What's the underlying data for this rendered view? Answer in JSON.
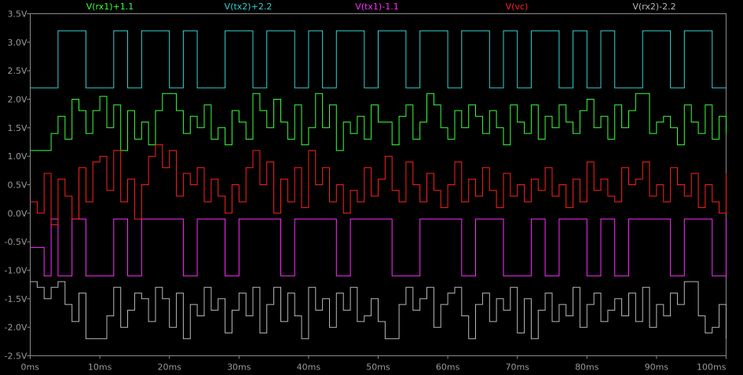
{
  "chart_data": {
    "type": "line",
    "xlabel": "",
    "ylabel": "",
    "xlim": [
      0,
      100
    ],
    "ylim": [
      -2.5,
      3.5
    ],
    "x_ticks": [
      "0ms",
      "10ms",
      "20ms",
      "30ms",
      "40ms",
      "50ms",
      "60ms",
      "70ms",
      "80ms",
      "90ms",
      "100ms"
    ],
    "y_ticks": [
      "3.5V",
      "3.0V",
      "2.5V",
      "2.0V",
      "1.5V",
      "1.0V",
      "0.5V",
      "0.0V",
      "-0.5V",
      "-1.0V",
      "-1.5V",
      "-2.0V",
      "-2.5V"
    ],
    "grid": false,
    "legend": "top",
    "series": [
      {
        "name": "V(rx1)+1.1",
        "color": "#3cff3c",
        "x": [
          0,
          2,
          3,
          4,
          5,
          6,
          7,
          8,
          9,
          10,
          11,
          12,
          13,
          14,
          15,
          16,
          17,
          18,
          19,
          20,
          21,
          22,
          23,
          24,
          25,
          26,
          27,
          28,
          29,
          30,
          31,
          32,
          33,
          34,
          35,
          36,
          37,
          38,
          39,
          40,
          41,
          42,
          43,
          44,
          45,
          46,
          47,
          48,
          49,
          50,
          51,
          52,
          53,
          54,
          55,
          56,
          57,
          58,
          59,
          60,
          61,
          62,
          63,
          64,
          65,
          66,
          67,
          68,
          69,
          70,
          71,
          72,
          73,
          74,
          75,
          76,
          77,
          78,
          79,
          80,
          81,
          82,
          83,
          84,
          85,
          86,
          87,
          88,
          89,
          90,
          91,
          92,
          93,
          94,
          95,
          96,
          97,
          98,
          99,
          100
        ],
        "values": [
          1.1,
          1.1,
          1.4,
          1.7,
          1.3,
          2.0,
          1.8,
          1.4,
          1.8,
          2.05,
          1.5,
          1.9,
          1.1,
          1.8,
          1.3,
          1.6,
          1.2,
          1.8,
          2.1,
          2.1,
          1.8,
          1.4,
          1.7,
          1.5,
          1.9,
          1.3,
          1.5,
          1.2,
          1.8,
          1.6,
          1.3,
          2.1,
          1.8,
          1.5,
          2.0,
          1.6,
          1.3,
          1.9,
          1.2,
          1.5,
          2.1,
          1.5,
          1.9,
          1.1,
          1.6,
          1.4,
          1.7,
          1.3,
          1.9,
          1.6,
          1.6,
          1.2,
          1.7,
          1.9,
          1.3,
          1.6,
          2.1,
          1.9,
          1.5,
          1.3,
          1.8,
          1.5,
          1.9,
          1.7,
          1.4,
          1.8,
          1.5,
          1.2,
          1.9,
          1.6,
          1.4,
          1.9,
          1.3,
          1.7,
          1.5,
          1.9,
          1.6,
          1.4,
          1.8,
          2.0,
          1.5,
          1.7,
          1.3,
          1.9,
          1.5,
          1.8,
          2.1,
          2.1,
          1.4,
          1.6,
          1.7,
          1.5,
          1.2,
          1.9,
          1.6,
          1.4,
          1.9,
          1.3,
          1.7,
          1.4
        ]
      },
      {
        "name": "V(tx2)+2.2",
        "color": "#35d1d1",
        "x": [
          0,
          2,
          4,
          6,
          8,
          10,
          12,
          14,
          16,
          18,
          20,
          22,
          24,
          26,
          28,
          30,
          32,
          34,
          36,
          38,
          40,
          42,
          44,
          46,
          48,
          50,
          52,
          54,
          56,
          58,
          60,
          62,
          64,
          66,
          68,
          70,
          72,
          74,
          76,
          78,
          80,
          82,
          84,
          86,
          88,
          90,
          92,
          94,
          96,
          98,
          100
        ],
        "values": [
          2.2,
          2.2,
          3.2,
          3.2,
          2.2,
          2.2,
          3.2,
          2.2,
          3.2,
          3.2,
          2.2,
          3.2,
          2.2,
          2.2,
          3.2,
          3.2,
          2.2,
          3.2,
          3.2,
          2.2,
          3.2,
          2.2,
          3.2,
          3.2,
          2.2,
          3.2,
          3.2,
          2.2,
          3.2,
          3.2,
          2.2,
          3.2,
          3.2,
          2.2,
          3.2,
          2.2,
          3.2,
          3.2,
          2.2,
          3.2,
          2.2,
          3.2,
          2.2,
          2.2,
          3.2,
          3.2,
          2.2,
          3.2,
          3.2,
          2.2,
          2.2
        ]
      },
      {
        "name": "V(tx1)-1.1",
        "color": "#ff2cff",
        "x": [
          0,
          1,
          2,
          3,
          4,
          5,
          6,
          8,
          10,
          12,
          14,
          16,
          18,
          20,
          22,
          24,
          26,
          28,
          30,
          32,
          34,
          36,
          38,
          40,
          42,
          44,
          46,
          48,
          50,
          52,
          54,
          56,
          58,
          60,
          62,
          64,
          66,
          68,
          70,
          72,
          74,
          76,
          78,
          80,
          82,
          84,
          86,
          88,
          90,
          92,
          94,
          96,
          98,
          100
        ],
        "values": [
          -0.6,
          -0.6,
          -1.1,
          -0.1,
          -1.1,
          -1.1,
          -0.1,
          -1.1,
          -1.1,
          -0.1,
          -1.1,
          -0.1,
          -0.1,
          -0.1,
          -1.1,
          -0.1,
          -0.1,
          -1.1,
          -0.1,
          -0.1,
          -0.1,
          -1.1,
          -0.1,
          -0.1,
          -0.1,
          -1.1,
          -0.1,
          -0.1,
          -0.1,
          -1.1,
          -1.1,
          -0.1,
          -0.1,
          -0.1,
          -1.1,
          -0.1,
          -0.1,
          -1.1,
          -1.1,
          -0.1,
          -1.1,
          -0.1,
          -0.1,
          -1.1,
          -0.1,
          -1.1,
          -0.1,
          -0.1,
          -0.1,
          -1.1,
          -0.1,
          -0.1,
          -1.1,
          -0.1
        ]
      },
      {
        "name": "V(vc)",
        "color": "#ff2020",
        "x": [
          0,
          1,
          2,
          3,
          4,
          5,
          6,
          7,
          8,
          9,
          10,
          11,
          12,
          13,
          14,
          15,
          16,
          17,
          18,
          19,
          20,
          21,
          22,
          23,
          24,
          25,
          26,
          27,
          28,
          29,
          30,
          31,
          32,
          33,
          34,
          35,
          36,
          37,
          38,
          39,
          40,
          41,
          42,
          43,
          44,
          45,
          46,
          47,
          48,
          49,
          50,
          51,
          52,
          53,
          54,
          55,
          56,
          57,
          58,
          59,
          60,
          61,
          62,
          63,
          64,
          65,
          66,
          67,
          68,
          69,
          70,
          71,
          72,
          73,
          74,
          75,
          76,
          77,
          78,
          79,
          80,
          81,
          82,
          83,
          84,
          85,
          86,
          87,
          88,
          89,
          90,
          91,
          92,
          93,
          94,
          95,
          96,
          97,
          98,
          99,
          100
        ],
        "values": [
          0.2,
          0.0,
          0.7,
          -0.2,
          0.6,
          0.3,
          -0.1,
          0.8,
          0.2,
          0.9,
          1.0,
          0.4,
          1.1,
          0.2,
          0.6,
          -0.1,
          0.5,
          1.0,
          1.2,
          0.8,
          1.1,
          0.3,
          0.7,
          0.5,
          0.8,
          0.2,
          0.6,
          0.3,
          0.0,
          0.5,
          0.2,
          0.8,
          1.1,
          0.5,
          0.9,
          0.0,
          0.6,
          0.2,
          0.8,
          0.1,
          1.1,
          0.5,
          0.8,
          0.2,
          0.5,
          0.0,
          0.4,
          0.2,
          0.8,
          0.3,
          0.6,
          1.0,
          0.4,
          0.2,
          0.9,
          0.5,
          0.2,
          0.7,
          0.4,
          0.1,
          0.5,
          0.9,
          0.2,
          0.6,
          0.3,
          0.8,
          0.4,
          0.1,
          0.7,
          0.3,
          0.5,
          0.2,
          0.6,
          0.4,
          0.8,
          0.3,
          0.5,
          0.1,
          0.6,
          0.2,
          0.9,
          0.4,
          0.6,
          0.3,
          0.2,
          0.8,
          0.5,
          0.6,
          0.9,
          0.3,
          0.5,
          0.2,
          0.8,
          0.5,
          0.3,
          0.7,
          0.1,
          0.5,
          0.2,
          0.0,
          0.7
        ]
      },
      {
        "name": "V(rx2)-2.2",
        "color": "#b8b8b8",
        "x": [
          0,
          1,
          2,
          3,
          4,
          5,
          6,
          7,
          8,
          9,
          10,
          11,
          12,
          13,
          14,
          15,
          16,
          17,
          18,
          19,
          20,
          21,
          22,
          23,
          24,
          25,
          26,
          27,
          28,
          29,
          30,
          31,
          32,
          33,
          34,
          35,
          36,
          37,
          38,
          39,
          40,
          41,
          42,
          43,
          44,
          45,
          46,
          47,
          48,
          49,
          50,
          51,
          52,
          53,
          54,
          55,
          56,
          57,
          58,
          59,
          60,
          61,
          62,
          63,
          64,
          65,
          66,
          67,
          68,
          69,
          70,
          71,
          72,
          73,
          74,
          75,
          76,
          77,
          78,
          79,
          80,
          81,
          82,
          83,
          84,
          85,
          86,
          87,
          88,
          89,
          90,
          91,
          92,
          93,
          94,
          95,
          96,
          97,
          98,
          99,
          100
        ],
        "values": [
          -1.2,
          -1.3,
          -1.5,
          -1.3,
          -1.2,
          -1.6,
          -1.9,
          -1.4,
          -2.2,
          -2.2,
          -2.2,
          -1.8,
          -1.3,
          -2.0,
          -1.7,
          -1.4,
          -1.5,
          -1.9,
          -1.3,
          -1.5,
          -2.0,
          -1.4,
          -2.2,
          -1.6,
          -1.8,
          -1.3,
          -1.7,
          -1.5,
          -2.1,
          -1.7,
          -1.4,
          -1.8,
          -1.3,
          -2.1,
          -1.6,
          -1.3,
          -1.9,
          -1.4,
          -1.8,
          -2.2,
          -1.3,
          -1.7,
          -1.5,
          -2.0,
          -1.4,
          -1.7,
          -1.3,
          -1.9,
          -1.8,
          -1.5,
          -1.9,
          -2.2,
          -2.2,
          -1.6,
          -1.3,
          -1.7,
          -1.5,
          -1.3,
          -2.0,
          -1.6,
          -1.4,
          -1.3,
          -1.8,
          -2.2,
          -1.6,
          -1.4,
          -1.9,
          -1.5,
          -1.7,
          -1.3,
          -2.1,
          -1.5,
          -2.2,
          -1.7,
          -1.4,
          -1.9,
          -1.6,
          -1.8,
          -1.3,
          -2.0,
          -1.6,
          -1.4,
          -1.9,
          -1.7,
          -1.5,
          -1.8,
          -1.4,
          -1.9,
          -1.3,
          -2.0,
          -1.6,
          -1.8,
          -1.4,
          -1.6,
          -1.2,
          -1.2,
          -1.8,
          -2.1,
          -2.0,
          -1.6,
          -2.2
        ]
      }
    ]
  }
}
